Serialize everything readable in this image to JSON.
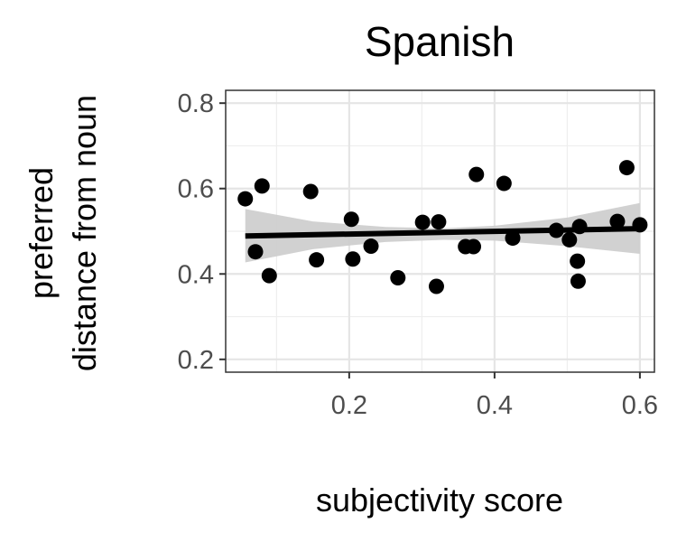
{
  "chart_data": {
    "type": "scatter",
    "title": "Spanish",
    "xlabel": "subjectivity score",
    "ylabel_lines": [
      "preferred",
      "distance from noun"
    ],
    "xlim": [
      0.03,
      0.62
    ],
    "ylim": [
      0.17,
      0.83
    ],
    "x_ticks": [
      0.2,
      0.4,
      0.6
    ],
    "x_tick_labels": [
      "0.2",
      "0.4",
      "0.6"
    ],
    "y_ticks": [
      0.2,
      0.4,
      0.6,
      0.8
    ],
    "y_tick_labels": [
      "0.2",
      "0.4",
      "0.6",
      "0.8"
    ],
    "grid": true,
    "points": [
      {
        "x": 0.057,
        "y": 0.576
      },
      {
        "x": 0.071,
        "y": 0.452
      },
      {
        "x": 0.08,
        "y": 0.606
      },
      {
        "x": 0.09,
        "y": 0.396
      },
      {
        "x": 0.147,
        "y": 0.593
      },
      {
        "x": 0.155,
        "y": 0.433
      },
      {
        "x": 0.203,
        "y": 0.528
      },
      {
        "x": 0.205,
        "y": 0.435
      },
      {
        "x": 0.23,
        "y": 0.465
      },
      {
        "x": 0.267,
        "y": 0.391
      },
      {
        "x": 0.301,
        "y": 0.521
      },
      {
        "x": 0.32,
        "y": 0.371
      },
      {
        "x": 0.323,
        "y": 0.522
      },
      {
        "x": 0.36,
        "y": 0.464
      },
      {
        "x": 0.371,
        "y": 0.464
      },
      {
        "x": 0.375,
        "y": 0.633
      },
      {
        "x": 0.413,
        "y": 0.612
      },
      {
        "x": 0.425,
        "y": 0.484
      },
      {
        "x": 0.485,
        "y": 0.502
      },
      {
        "x": 0.503,
        "y": 0.48
      },
      {
        "x": 0.514,
        "y": 0.43
      },
      {
        "x": 0.515,
        "y": 0.383
      },
      {
        "x": 0.517,
        "y": 0.511
      },
      {
        "x": 0.569,
        "y": 0.523
      },
      {
        "x": 0.582,
        "y": 0.649
      },
      {
        "x": 0.6,
        "y": 0.515
      }
    ],
    "trend_line": {
      "x": [
        0.057,
        0.6
      ],
      "y": [
        0.489,
        0.506
      ],
      "color": "#000000"
    },
    "confidence_band": {
      "x": [
        0.057,
        0.15,
        0.25,
        0.33,
        0.4,
        0.5,
        0.6
      ],
      "lower": [
        0.427,
        0.458,
        0.475,
        0.48,
        0.478,
        0.465,
        0.447
      ],
      "upper": [
        0.552,
        0.523,
        0.51,
        0.507,
        0.513,
        0.532,
        0.566
      ],
      "color": "#cccccc"
    },
    "point_color": "#000000"
  }
}
